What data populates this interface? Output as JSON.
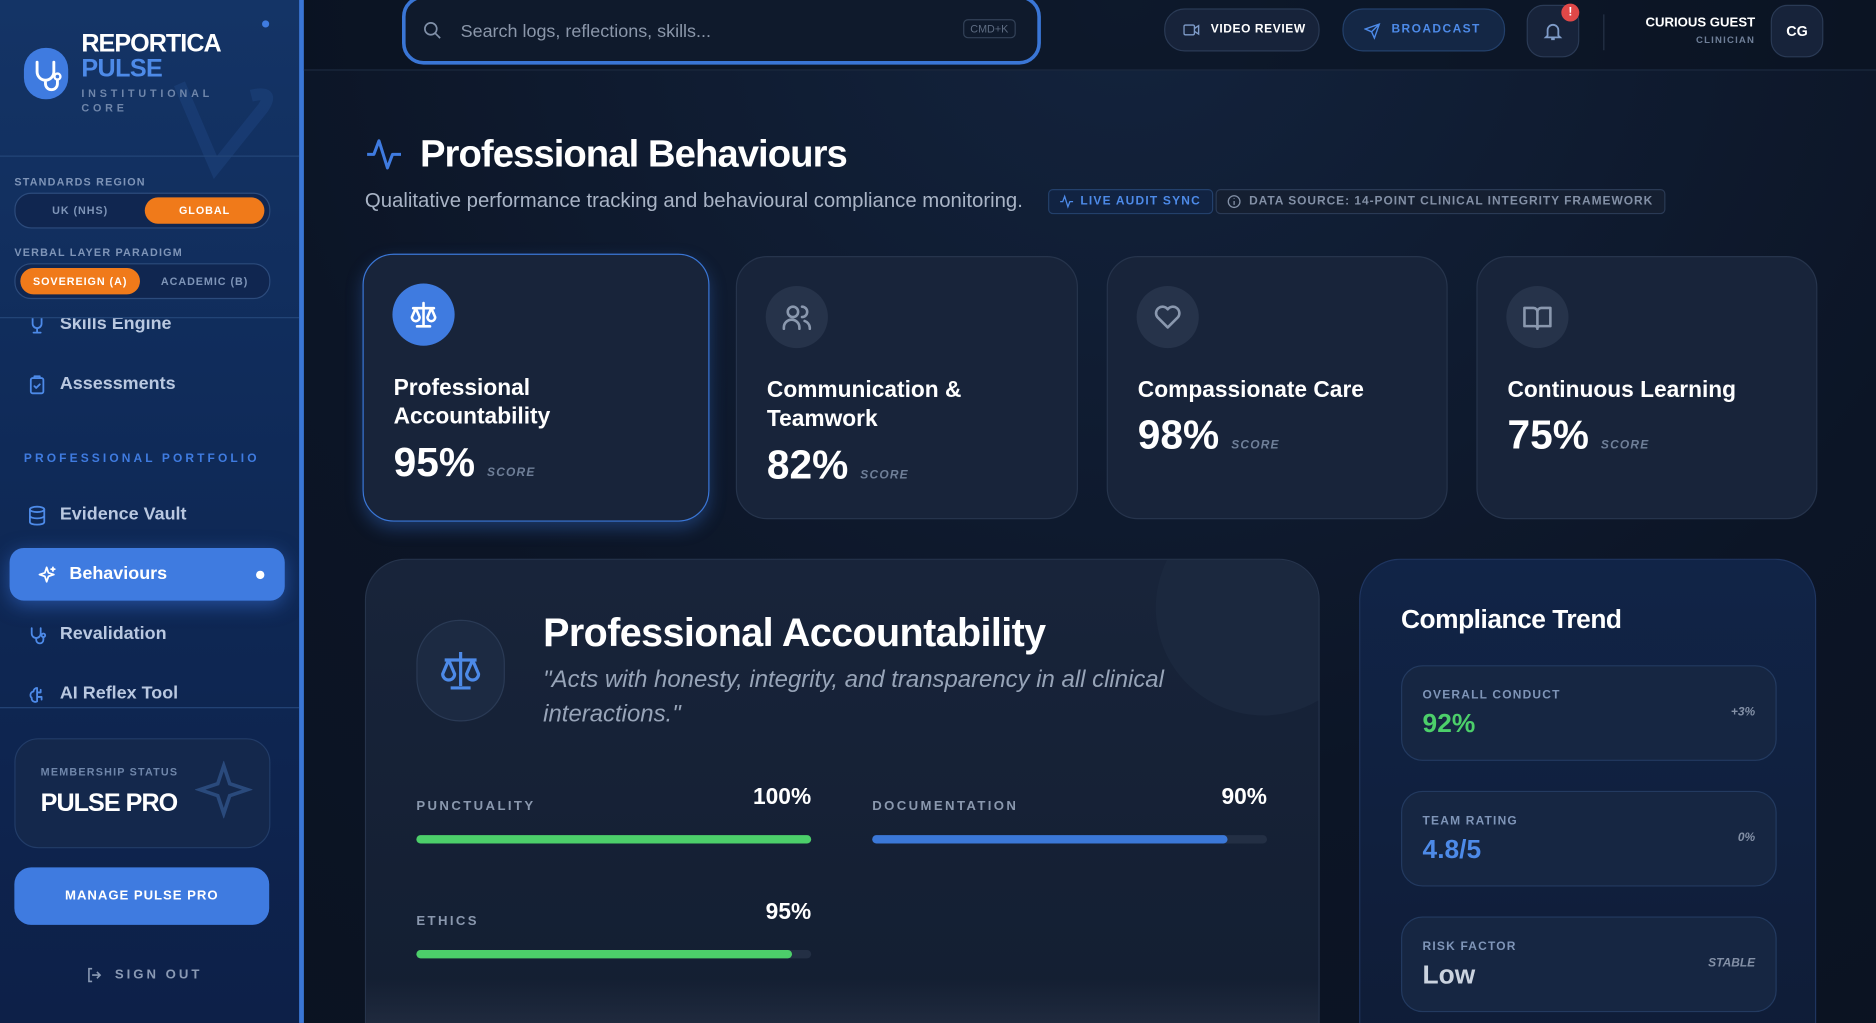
{
  "sidebar": {
    "brand": {
      "name": "REPORTICA",
      "sub": "PULSE",
      "tagline": "INSTITUTIONAL CORE"
    },
    "standards_region": {
      "label": "STANDARDS REGION",
      "options": [
        "UK (NHS)",
        "GLOBAL"
      ],
      "active": 1
    },
    "verbal_layer": {
      "label": "VERBAL LAYER PARADIGM",
      "options": [
        "SOVEREIGN (A)",
        "ACADEMIC (B)"
      ],
      "active": 0
    },
    "nav_top": [
      "Skills Engine",
      "Assessments"
    ],
    "section": "PROFESSIONAL PORTFOLIO",
    "nav": [
      "Evidence Vault",
      "Behaviours",
      "Revalidation",
      "AI Reflex Tool"
    ],
    "nav_active": 1,
    "membership": {
      "label": "MEMBERSHIP STATUS",
      "value": "PULSE PRO"
    },
    "button": "MANAGE PULSE PRO",
    "sign_out": "SIGN OUT"
  },
  "topbar": {
    "search_placeholder": "Search logs, reflections, skills...",
    "shortcut": "CMD+K",
    "buttons": [
      "VIDEO REVIEW",
      "BROADCAST"
    ],
    "notification_badge": "!",
    "user": {
      "name": "CURIOUS GUEST",
      "role": "CLINICIAN",
      "initials": "CG"
    }
  },
  "header": {
    "title": "Professional Behaviours",
    "subtitle": "Qualitative performance tracking and behavioural compliance monitoring.",
    "badges": [
      "LIVE AUDIT SYNC",
      "DATA SOURCE: 14-POINT CLINICAL INTEGRITY FRAMEWORK"
    ]
  },
  "cards": [
    {
      "title": "Professional Accountability",
      "score": "95%",
      "score_label": "SCORE"
    },
    {
      "title": "Communication & Teamwork",
      "score": "82%",
      "score_label": "SCORE"
    },
    {
      "title": "Compassionate Care",
      "score": "98%",
      "score_label": "SCORE"
    },
    {
      "title": "Continuous Learning",
      "score": "75%",
      "score_label": "SCORE"
    }
  ],
  "cards_active": 0,
  "detail": {
    "title": "Professional Accountability",
    "quote": "\"Acts with honesty, integrity, and transparency in all clinical interactions.\"",
    "metrics": {
      "labels": [
        "PUNCTUALITY",
        "DOCUMENTATION",
        "ETHICS"
      ],
      "values": [
        100,
        90,
        95
      ],
      "value_labels": [
        "100%",
        "90%",
        "95%"
      ],
      "colors": [
        "#4ccf6a",
        "#3b78d8",
        "#4ccf6a"
      ],
      "max": 100
    }
  },
  "trend": {
    "title": "Compliance Trend",
    "items": [
      {
        "label": "OVERALL CONDUCT",
        "value": "92%",
        "delta": "+3%",
        "color": "#4ccf6a"
      },
      {
        "label": "TEAM RATING",
        "value": "4.8/5",
        "delta": "0%",
        "color": "#4d8ae8"
      },
      {
        "label": "RISK FACTOR",
        "value": "Low",
        "delta": "STABLE",
        "color": "#cbd3df"
      }
    ]
  }
}
